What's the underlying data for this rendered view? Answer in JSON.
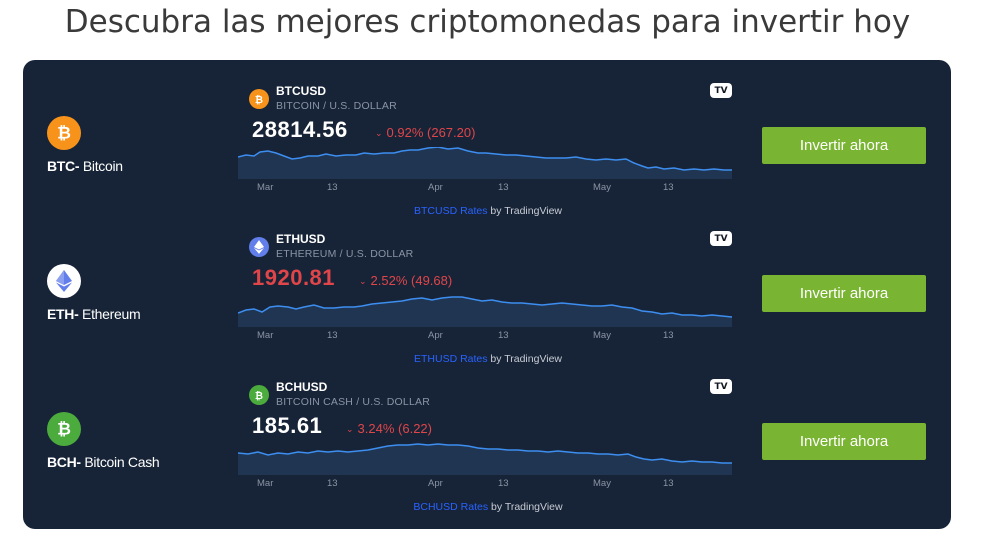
{
  "page": {
    "title": "Descubra las mejores criptomonedas para invertir hoy"
  },
  "rows": [
    {
      "coin_code": "BTC-",
      "coin_name": " Bitcoin",
      "icon": "bitcoin-icon",
      "icon_color": "#f7931a",
      "widget": {
        "symbol": "BTCUSD",
        "description": "BITCOIN / U.S. DOLLAR",
        "price": "28814.56",
        "price_color": "#ffffff",
        "change": "0.92% (267.20)",
        "direction": "down",
        "axis_labels": [
          "Mar",
          "13",
          "Apr",
          "13",
          "May",
          "13"
        ],
        "attribution_link": "BTCUSD Rates",
        "attribution_suffix": " by TradingView"
      },
      "button_label": "Invertir ahora"
    },
    {
      "coin_code": "ETH-",
      "coin_name": " Ethereum",
      "icon": "ethereum-icon",
      "icon_color": "#ffffff",
      "widget": {
        "symbol": "ETHUSD",
        "description": "ETHEREUM / U.S. DOLLAR",
        "price": "1920.81",
        "price_color": "#e0454a",
        "change": "2.52% (49.68)",
        "direction": "down",
        "axis_labels": [
          "Mar",
          "13",
          "Apr",
          "13",
          "May",
          "13"
        ],
        "attribution_link": "ETHUSD Rates",
        "attribution_suffix": " by TradingView"
      },
      "button_label": "Invertir ahora"
    },
    {
      "coin_code": "BCH-",
      "coin_name": " Bitcoin Cash",
      "icon": "bitcoin-cash-icon",
      "icon_color": "#4cab3d",
      "widget": {
        "symbol": "BCHUSD",
        "description": "BITCOIN CASH / U.S. DOLLAR",
        "price": "185.61",
        "price_color": "#ffffff",
        "change": "3.24% (6.22)",
        "direction": "down",
        "axis_labels": [
          "Mar",
          "13",
          "Apr",
          "13",
          "May",
          "13"
        ],
        "attribution_link": "BCHUSD Rates",
        "attribution_suffix": " by TradingView"
      },
      "button_label": "Invertir ahora"
    }
  ],
  "colors": {
    "panel_bg": "#172437",
    "button_bg": "#79b432",
    "line": "#3d8ef0",
    "area": "#1f3552",
    "down": "#e0454a"
  }
}
